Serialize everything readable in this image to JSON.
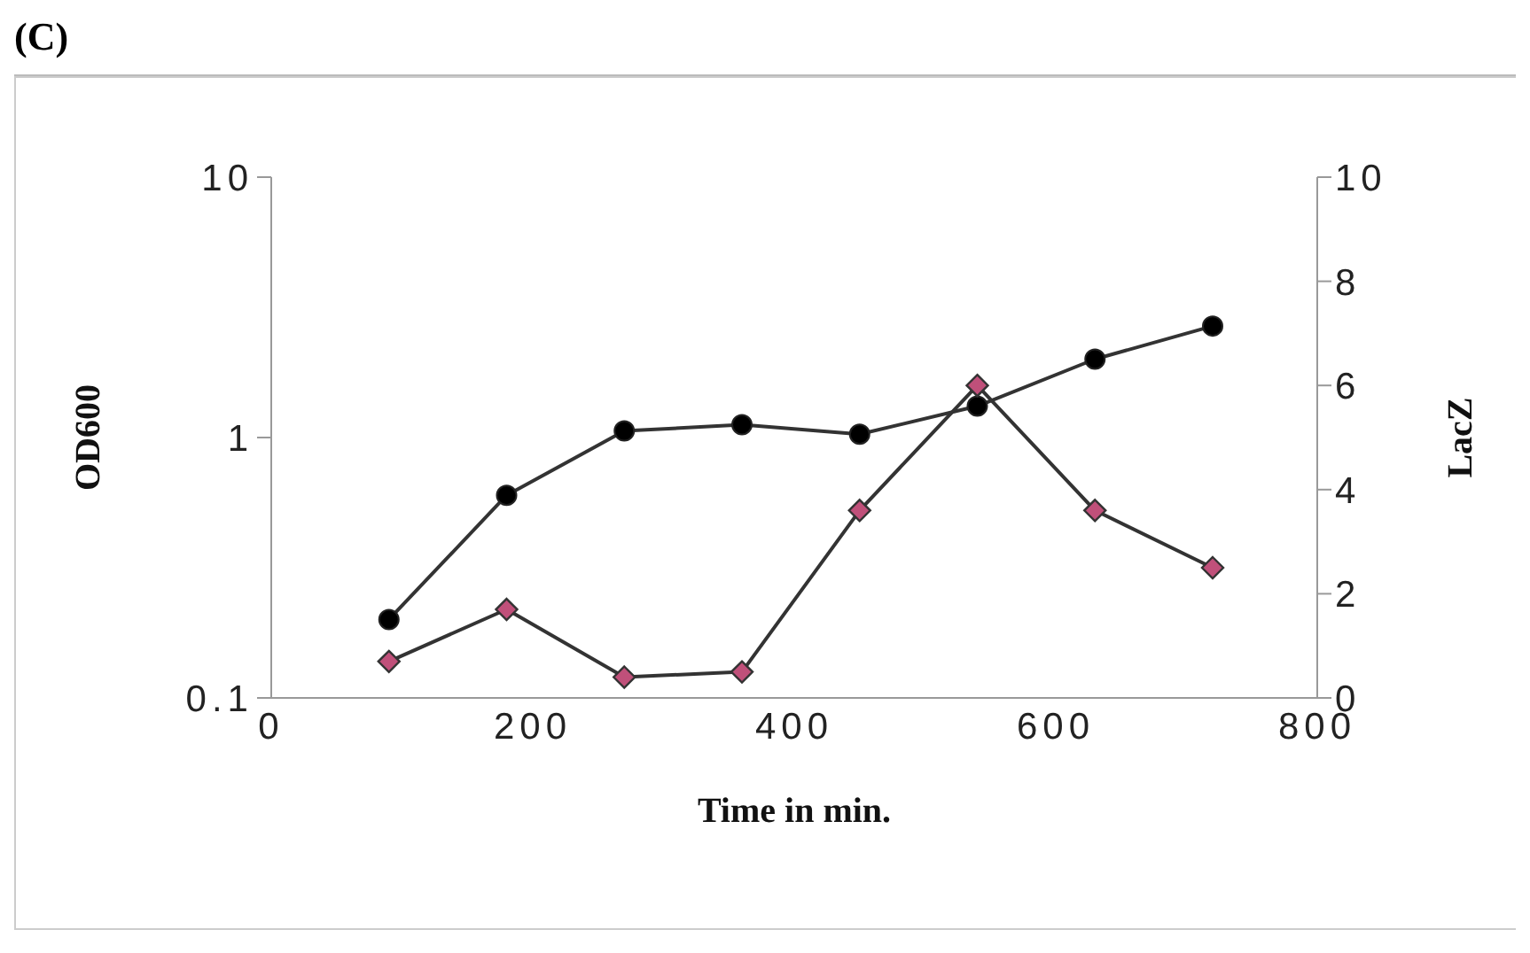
{
  "chart_data": {
    "type": "line",
    "title": "(C)",
    "xlabel": "Time in min.",
    "ylabel": "OD600",
    "y2label": "LacZ",
    "x": [
      90,
      180,
      270,
      360,
      450,
      540,
      630,
      720
    ],
    "series": [
      {
        "color": "#000000",
        "values": [
          0.2,
          0.6,
          1.06,
          1.12,
          1.03,
          1.32,
          2.0,
          2.68
        ],
        "marker": "circle"
      },
      {
        "color": "#c0507a",
        "values": [
          0.7,
          1.7,
          0.4,
          0.5,
          3.6,
          6.0,
          3.6,
          2.5
        ],
        "marker": "diamond",
        "axis": "y2"
      }
    ],
    "log": "y",
    "xlim": [
      0,
      800
    ],
    "xticks": [
      0,
      200,
      400,
      600,
      800
    ],
    "ylim": [
      0.1,
      10
    ],
    "yticks": [
      0.1,
      1,
      10
    ],
    "y2lim": [
      0,
      10
    ],
    "y2ticks": [
      0,
      2,
      4,
      6,
      8,
      10
    ],
    "grid": false,
    "legend": false
  }
}
